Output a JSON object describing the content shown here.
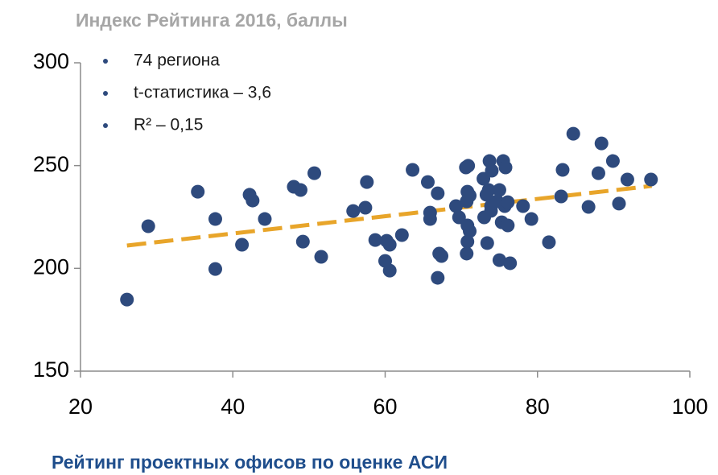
{
  "chart_data": {
    "type": "scatter",
    "title": "Индекс Рейтинга 2016, баллы",
    "x_label": "Рейтинг проектных офисов по оценке АСИ",
    "annotations": [
      "74 региона",
      "t-статистика – 3,6",
      "R² – 0,15"
    ],
    "color": "#2e4a7d",
    "x": [
      26.1,
      28.9,
      35.4,
      37.7,
      37.7,
      41.2,
      42.2,
      42.6,
      44.2,
      48.0,
      48.9,
      49.2,
      50.7,
      51.6,
      55.8,
      57.4,
      57.6,
      58.7,
      60.0,
      60.2,
      60.6,
      60.6,
      62.2,
      63.6,
      65.6,
      65.9,
      65.9,
      66.9,
      66.9,
      67.1,
      67.4,
      69.3,
      69.7,
      70.6,
      70.9,
      70.8,
      71.1,
      70.7,
      70.8,
      71.1,
      70.8,
      70.7,
      72.9,
      73.0,
      73.3,
      73.6,
      73.4,
      73.7,
      74.0,
      73.9,
      73.9,
      74.7,
      75.0,
      75.0,
      75.3,
      75.5,
      75.7,
      75.8,
      76.1,
      76.1,
      76.4,
      78.1,
      79.2,
      81.5,
      83.1,
      83.3,
      84.7,
      86.7,
      88.0,
      88.4,
      89.9,
      90.7,
      91.8,
      94.9
    ],
    "y": [
      184.8,
      220.5,
      237.3,
      224.0,
      199.7,
      211.5,
      235.8,
      233.0,
      224.0,
      239.7,
      238.1,
      213.0,
      246.3,
      205.6,
      227.9,
      229.5,
      242.0,
      213.8,
      203.6,
      213.4,
      211.5,
      198.9,
      216.2,
      247.9,
      242.0,
      227.1,
      224.0,
      236.5,
      195.4,
      207.2,
      206.0,
      230.3,
      224.8,
      249.1,
      249.9,
      237.3,
      235.4,
      232.6,
      220.9,
      218.1,
      213.0,
      207.2,
      243.6,
      224.8,
      235.8,
      238.1,
      212.3,
      252.2,
      247.5,
      230.3,
      228.0,
      232.6,
      238.1,
      204.0,
      222.4,
      252.2,
      230.3,
      249.1,
      232.2,
      220.9,
      202.5,
      230.3,
      224.0,
      212.7,
      235.0,
      247.9,
      265.5,
      229.9,
      246.3,
      260.8,
      252.2,
      231.5,
      243.2,
      243.2
    ],
    "trendline": {
      "x": [
        26.1,
        95
      ],
      "y": [
        211.1,
        240.1
      ],
      "color": "#e8a52a"
    },
    "xlim": [
      20,
      100
    ],
    "xticks": [
      20,
      40,
      60,
      80,
      100
    ],
    "ylim": [
      150,
      300
    ],
    "yticks": [
      150,
      200,
      250,
      300
    ]
  }
}
